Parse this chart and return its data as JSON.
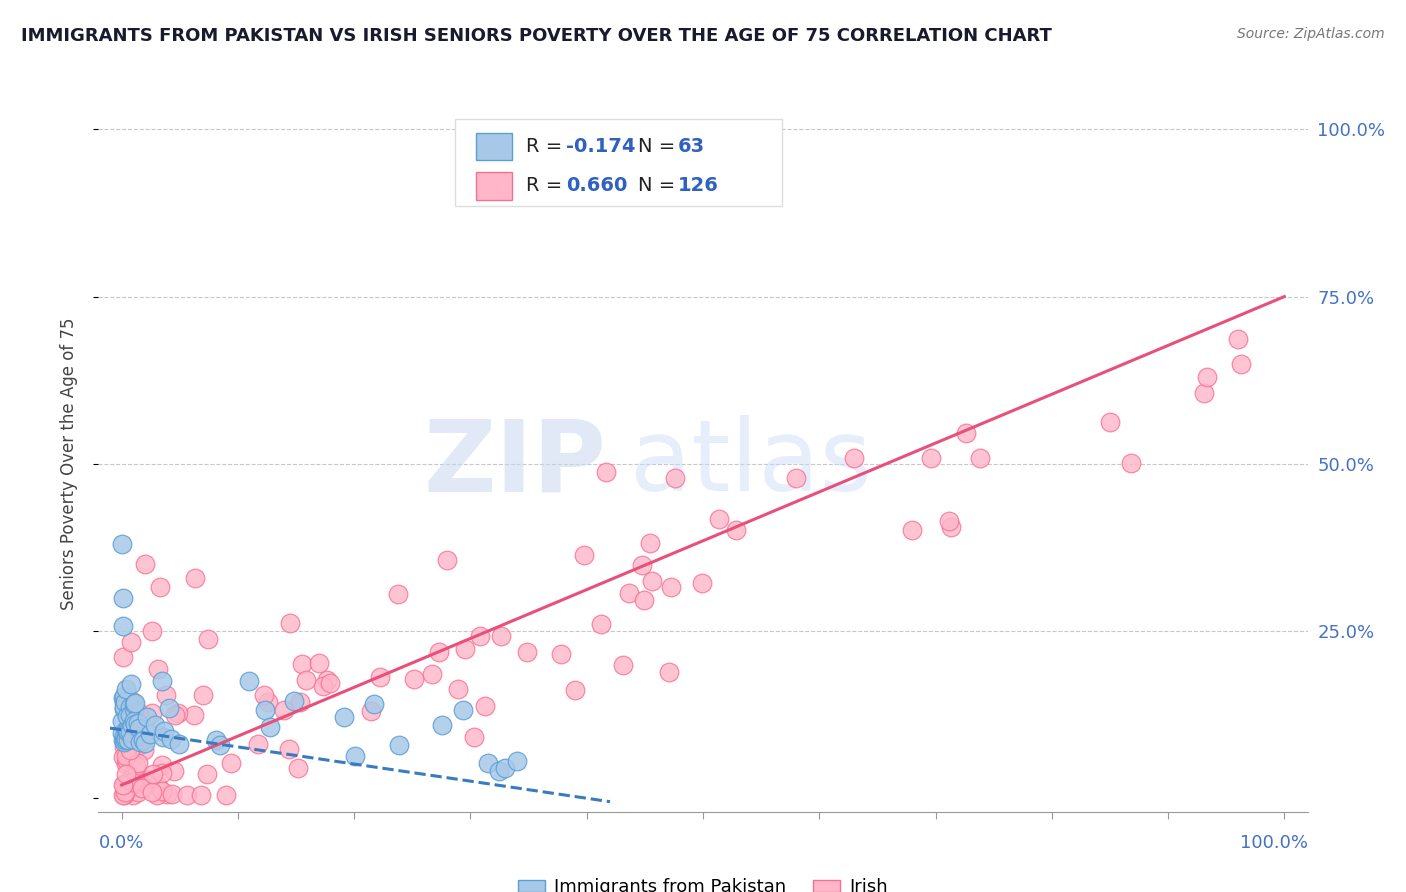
{
  "title": "IMMIGRANTS FROM PAKISTAN VS IRISH SENIORS POVERTY OVER THE AGE OF 75 CORRELATION CHART",
  "source": "Source: ZipAtlas.com",
  "ylabel": "Seniors Poverty Over the Age of 75",
  "watermark_zip": "ZIP",
  "watermark_atlas": "atlas",
  "blue_color": "#a8c8e8",
  "blue_edge": "#5a9fd4",
  "pink_color": "#ffb6c8",
  "pink_edge": "#f87090",
  "blue_line_color": "#3a7abf",
  "pink_line_color": "#e8507a",
  "background_color": "#ffffff",
  "grid_color": "#c8c8c8",
  "title_color": "#1a1a2e",
  "source_color": "#777777",
  "right_tick_color": "#4472C4",
  "xlim": [
    -0.02,
    1.02
  ],
  "ylim": [
    -0.02,
    1.02
  ]
}
